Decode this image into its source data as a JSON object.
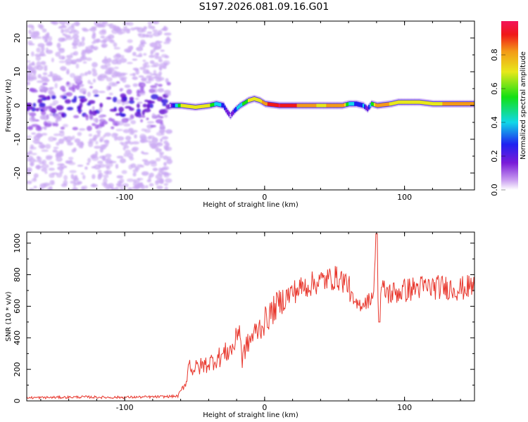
{
  "title": "S197.2026.081.09.16.G01",
  "chart_data": [
    {
      "type": "heatmap",
      "xlabel": "Height of straight line (km)",
      "ylabel": "Frequency (Hz)",
      "xlim": [
        -170,
        150
      ],
      "ylim": [
        -25,
        25
      ],
      "xticks": [
        -100,
        0,
        100
      ],
      "yticks": [
        -20,
        -10,
        0,
        10,
        20
      ],
      "colorbar": {
        "label": "Normalized spectral amplitude",
        "ticks": [
          "0.0",
          "0.2",
          "0.4",
          "0.6",
          "0.8"
        ],
        "range": [
          0,
          1
        ]
      },
      "noise_region_x": [
        -170,
        -68
      ],
      "ridge": {
        "x": [
          -68,
          -60,
          -50,
          -40,
          -35,
          -30,
          -27,
          -25,
          -22,
          -18,
          -12,
          -8,
          -4,
          0,
          10,
          20,
          30,
          40,
          50,
          55,
          60,
          65,
          70,
          73,
          76,
          80,
          90,
          95,
          100,
          110,
          120,
          130,
          140,
          150
        ],
        "freq": [
          0,
          0,
          -0.5,
          0,
          0.5,
          0,
          -2,
          -3,
          -1.5,
          0,
          1.5,
          2,
          1.5,
          0.5,
          0,
          0,
          0,
          0,
          0,
          0,
          0.5,
          0.5,
          0,
          -1,
          0.5,
          0,
          0.5,
          1,
          1,
          1,
          0.5,
          0.5,
          0.5,
          0.5
        ],
        "amp": [
          0.15,
          0.7,
          0.8,
          0.7,
          0.5,
          0.35,
          0.2,
          0.15,
          0.3,
          0.5,
          0.7,
          0.75,
          0.75,
          0.9,
          1.0,
          0.95,
          0.85,
          0.8,
          0.85,
          0.9,
          0.5,
          0.35,
          0.4,
          0.2,
          0.6,
          0.9,
          0.8,
          0.75,
          0.8,
          0.8,
          0.75,
          0.85,
          0.9,
          0.85
        ]
      }
    },
    {
      "type": "line",
      "xlabel": "Height of straight line (km)",
      "ylabel": "SNR (10 * v/v)",
      "xlim": [
        -170,
        150
      ],
      "ylim": [
        0,
        1070
      ],
      "xticks": [
        -100,
        0,
        100
      ],
      "yticks": [
        0,
        200,
        400,
        600,
        800,
        1000
      ],
      "color": "#e8372d",
      "series": [
        {
          "name": "SNR",
          "x": [
            -170,
            -150,
            -130,
            -110,
            -90,
            -75,
            -62,
            -56,
            -54,
            -52,
            -45,
            -40,
            -30,
            -22,
            -18,
            -16,
            -14,
            -12,
            -8,
            -2,
            5,
            10,
            20,
            30,
            40,
            50,
            55,
            60,
            62,
            65,
            70,
            75,
            78,
            80,
            81,
            82,
            85,
            90,
            100,
            110,
            120,
            130,
            140,
            150
          ],
          "y": [
            20,
            22,
            25,
            22,
            24,
            26,
            30,
            120,
            250,
            200,
            220,
            240,
            290,
            340,
            480,
            250,
            330,
            360,
            420,
            480,
            560,
            620,
            690,
            730,
            760,
            780,
            770,
            740,
            650,
            600,
            620,
            640,
            700,
            1060,
            700,
            680,
            700,
            680,
            700,
            720,
            720,
            720,
            710,
            730
          ],
          "noise": [
            8,
            8,
            8,
            8,
            8,
            8,
            8,
            30,
            40,
            50,
            60,
            60,
            70,
            70,
            70,
            70,
            70,
            70,
            80,
            90,
            90,
            90,
            80,
            80,
            80,
            80,
            80,
            80,
            60,
            50,
            50,
            50,
            60,
            0,
            80,
            80,
            80,
            80,
            80,
            80,
            80,
            80,
            80,
            80
          ]
        }
      ]
    }
  ]
}
